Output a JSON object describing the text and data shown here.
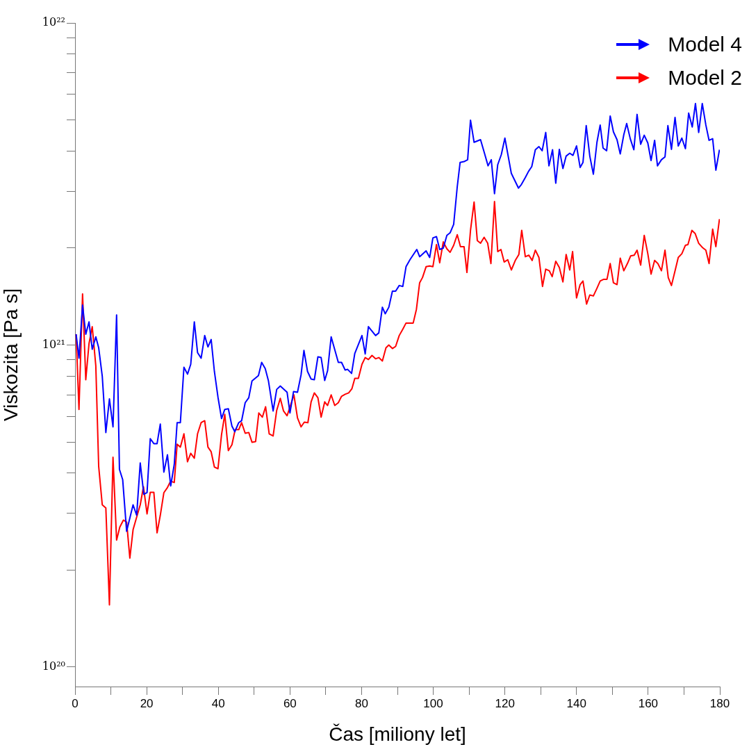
{
  "chart_data": {
    "type": "line",
    "xlabel": "Čas [miliony let]",
    "ylabel": "Viskozita [Pa s]",
    "log": "y",
    "grid": false,
    "legend": "top right",
    "marker": "none",
    "xlim": [
      0,
      180
    ],
    "xticks": [
      0,
      {
        "value": 10,
        "label": null
      },
      20,
      {
        "value": 30,
        "label": null
      },
      40,
      {
        "value": 50,
        "label": null
      },
      60,
      {
        "value": 70,
        "label": null
      },
      80,
      {
        "value": 90,
        "label": null
      },
      100,
      {
        "value": 110,
        "label": null
      },
      120,
      {
        "value": 130,
        "label": null
      },
      140,
      {
        "value": 150,
        "label": null
      },
      160,
      {
        "value": 170,
        "label": null
      },
      180
    ],
    "ylim": [
      8.7e+19,
      1e+22
    ],
    "yticks": [
      {
        "value": 1e+20,
        "label": "10²⁰"
      },
      {
        "value": 2e+20,
        "label": null
      },
      {
        "value": 3e+20,
        "label": null
      },
      {
        "value": 4e+20,
        "label": null
      },
      {
        "value": 5e+20,
        "label": null
      },
      {
        "value": 6e+20,
        "label": null
      },
      {
        "value": 7e+20,
        "label": null
      },
      {
        "value": 8e+20,
        "label": null
      },
      {
        "value": 9e+20,
        "label": null
      },
      {
        "value": 1e+21,
        "label": "10²¹"
      },
      {
        "value": 2e+21,
        "label": null
      },
      {
        "value": 3e+21,
        "label": null
      },
      {
        "value": 4e+21,
        "label": null
      },
      {
        "value": 5e+21,
        "label": null
      },
      {
        "value": 6e+21,
        "label": null
      },
      {
        "value": 7e+21,
        "label": null
      },
      {
        "value": 8e+21,
        "label": null
      },
      {
        "value": 9e+21,
        "label": null
      },
      {
        "value": 1e+22,
        "label": "10²²"
      }
    ],
    "series": [
      {
        "name": "Model 4",
        "color": "#0000ff",
        "x": [
          0.3,
          1.1,
          2.1,
          3.0,
          3.9,
          4.8,
          5.8,
          6.6,
          7.6,
          8.6,
          9.6,
          10.6,
          11.6,
          12.4,
          13.3,
          14.4,
          16.2,
          17.2,
          18.2,
          19.2,
          20.1,
          21.0,
          22.0,
          22.9,
          23.8,
          24.8,
          25.8,
          26.7,
          27.7,
          28.5,
          29.4,
          30.4,
          31.4,
          32.3,
          33.3,
          34.2,
          35.2,
          36.2,
          37.1,
          38.0,
          38.9,
          39.9,
          40.9,
          41.8,
          42.8,
          43.8,
          44.6,
          45.7,
          46.5,
          47.5,
          48.5,
          49.4,
          51.2,
          52.1,
          53.1,
          54.0,
          55.3,
          56.3,
          57.3,
          59.2,
          60.0,
          61.0,
          62.1,
          63.1,
          63.9,
          64.9,
          65.9,
          66.8,
          67.8,
          68.7,
          69.7,
          70.5,
          71.5,
          73.5,
          74.4,
          75.4,
          76.1,
          77.2,
          78.1,
          80.1,
          81.0,
          81.9,
          83.9,
          84.8,
          85.8,
          86.6,
          87.6,
          88.6,
          89.5,
          90.5,
          91.5,
          92.4,
          93.5,
          95.4,
          96.2,
          98.0,
          99.0,
          99.9,
          100.9,
          101.8,
          102.8,
          103.8,
          104.7,
          105.7,
          106.7,
          107.5,
          108.6,
          109.6,
          110.4,
          111.4,
          113.2,
          114.3,
          115.3,
          116.2,
          117.1,
          118.0,
          119.0,
          120.0,
          121.8,
          122.6,
          123.8,
          124.6,
          125.7,
          126.6,
          127.5,
          128.5,
          129.5,
          130.4,
          131.4,
          132.3,
          133.3,
          134.2,
          135.2,
          136.2,
          137.1,
          138.1,
          139.0,
          140.0,
          141.0,
          141.8,
          142.7,
          143.7,
          144.7,
          145.7,
          146.6,
          147.4,
          148.4,
          149.4,
          150.3,
          151.3,
          152.2,
          153.2,
          154.0,
          155.0,
          156.0,
          156.9,
          157.9,
          158.9,
          159.9,
          160.8,
          161.8,
          162.6,
          163.7,
          164.7,
          165.5,
          166.5,
          167.5,
          168.4,
          169.4,
          170.4,
          171.3,
          172.3,
          173.2,
          174.1,
          175.1,
          176.1,
          177.0,
          178.0,
          178.9,
          179.9
        ],
        "values": [
          1.08e+21,
          9.1e+20,
          1.33e+21,
          1.08e+21,
          1.18e+21,
          9.7e+20,
          1.06e+21,
          9.8e+20,
          8e+20,
          5.35e+20,
          6.8e+20,
          5.57e+20,
          1.24e+21,
          4.11e+20,
          3.82e+20,
          2.64e+20,
          3.19e+20,
          2.96e+20,
          4.3e+20,
          3.44e+20,
          3.48e+20,
          5.12e+20,
          4.94e+20,
          4.94e+20,
          5.68e+20,
          4.03e+20,
          4.56e+20,
          3.65e+20,
          4.26e+20,
          5.74e+20,
          5.74e+20,
          8.53e+20,
          8.12e+20,
          8.71e+20,
          1.18e+21,
          9.47e+20,
          9.1e+20,
          1.07e+21,
          9.86e+20,
          1.04e+21,
          8.28e+20,
          6.89e+20,
          5.91e+20,
          6.31e+20,
          6.34e+20,
          5.6e+20,
          5.38e+20,
          5.74e+20,
          5.82e+20,
          6.62e+20,
          6.86e+20,
          7.73e+20,
          8.04e+20,
          8.83e+20,
          8.45e+20,
          7.73e+20,
          6.24e+20,
          7.28e+20,
          7.46e+20,
          7.13e+20,
          6.15e+20,
          7.17e+20,
          7.13e+20,
          8.08e+20,
          9.62e+20,
          8.28e+20,
          7.84e+20,
          7.8e+20,
          9.19e+20,
          9.14e+20,
          7.76e+20,
          8.32e+20,
          1.06e+21,
          8.83e+20,
          8.83e+20,
          8.36e+20,
          8.4e+20,
          8.16e+20,
          9.42e+20,
          1.07e+21,
          9.38e+20,
          1.14e+21,
          1.07e+21,
          1.09e+21,
          1.31e+21,
          1.25e+21,
          1.31e+21,
          1.47e+21,
          1.47e+21,
          1.53e+21,
          1.52e+21,
          1.75e+21,
          1.84e+21,
          1.98e+21,
          1.88e+21,
          1.96e+21,
          1.87e+21,
          2.15e+21,
          2.17e+21,
          1.98e+21,
          2e+21,
          2.19e+21,
          2.23e+21,
          2.37e+21,
          3.1e+21,
          3.69e+21,
          3.71e+21,
          3.76e+21,
          4.99e+21,
          4.26e+21,
          4.34e+21,
          3.94e+21,
          3.6e+21,
          3.76e+21,
          2.95e+21,
          3.63e+21,
          3.9e+21,
          4.39e+21,
          3.41e+21,
          3.27e+21,
          3.07e+21,
          3.15e+21,
          3.31e+21,
          3.46e+21,
          3.58e+21,
          4.04e+21,
          4.13e+21,
          4.01e+21,
          4.57e+21,
          3.6e+21,
          4.04e+21,
          3.18e+21,
          4.05e+21,
          3.53e+21,
          3.86e+21,
          3.94e+21,
          3.88e+21,
          4.15e+21,
          3.56e+21,
          3.69e+21,
          4.8e+21,
          3.86e+21,
          3.39e+21,
          4.26e+21,
          4.82e+21,
          4.09e+21,
          4.01e+21,
          5.14e+21,
          4.59e+21,
          4.34e+21,
          3.92e+21,
          4.5e+21,
          4.87e+21,
          4.37e+21,
          4.04e+21,
          5.2e+21,
          4.2e+21,
          4.48e+21,
          4.24e+21,
          3.74e+21,
          4.32e+21,
          3.6e+21,
          3.76e+21,
          3.84e+21,
          4.8e+21,
          4.05e+21,
          5.09e+21,
          4.15e+21,
          4.39e+21,
          4.07e+21,
          5.25e+21,
          4.75e+21,
          5.62e+21,
          4.57e+21,
          5.62e+21,
          4.82e+21,
          4.32e+21,
          4.37e+21,
          3.49e+21,
          4.04e+21
        ]
      },
      {
        "name": "Model 2",
        "color": "#ff0000",
        "x": [
          0.3,
          1.1,
          2.1,
          3.0,
          3.9,
          4.8,
          5.8,
          6.6,
          7.6,
          8.6,
          9.6,
          10.6,
          11.6,
          12.5,
          13.5,
          14.4,
          15.3,
          16.2,
          17.2,
          18.2,
          19.1,
          20.1,
          21.0,
          22.0,
          22.9,
          23.8,
          24.8,
          25.8,
          26.7,
          27.7,
          28.5,
          29.4,
          30.4,
          31.4,
          32.3,
          33.3,
          34.2,
          35.2,
          36.2,
          37.1,
          38.0,
          38.9,
          39.9,
          40.9,
          41.8,
          42.8,
          43.8,
          44.7,
          45.7,
          46.5,
          47.5,
          48.5,
          49.4,
          50.4,
          51.3,
          52.3,
          53.2,
          54.2,
          55.3,
          56.3,
          57.3,
          58.2,
          59.2,
          61.1,
          62.1,
          63.1,
          64.0,
          65.0,
          65.9,
          66.8,
          67.8,
          68.7,
          69.7,
          70.5,
          71.5,
          72.5,
          73.5,
          74.4,
          75.4,
          76.4,
          77.3,
          78.1,
          79.1,
          80.1,
          81.0,
          81.9,
          82.9,
          83.9,
          84.8,
          85.8,
          86.8,
          87.6,
          88.6,
          89.5,
          90.5,
          91.5,
          92.4,
          94.4,
          95.3,
          96.2,
          97.0,
          98.0,
          99.0,
          99.9,
          100.9,
          101.8,
          102.8,
          103.8,
          104.7,
          105.7,
          106.7,
          107.6,
          108.6,
          109.4,
          110.4,
          111.4,
          112.3,
          113.2,
          114.2,
          115.2,
          116.1,
          117.1,
          118.0,
          118.9,
          119.8,
          120.8,
          121.8,
          122.9,
          123.9,
          124.7,
          125.7,
          126.7,
          127.6,
          128.5,
          129.5,
          130.5,
          131.4,
          132.4,
          133.2,
          134.2,
          135.2,
          136.2,
          137.1,
          138.1,
          138.9,
          140.0,
          141.0,
          141.8,
          142.8,
          143.7,
          144.7,
          145.7,
          146.6,
          147.6,
          148.5,
          149.4,
          150.3,
          151.3,
          152.2,
          153.2,
          154.2,
          155.1,
          156.1,
          156.9,
          157.9,
          158.9,
          159.9,
          160.8,
          161.8,
          162.7,
          163.7,
          164.7,
          165.6,
          166.5,
          167.5,
          168.4,
          169.4,
          170.4,
          171.1,
          172.2,
          173.1,
          174.1,
          175.1,
          176.1,
          177.0,
          178.0,
          178.9,
          179.9
        ],
        "values": [
          1.08e+21,
          6.31e+20,
          1.44e+21,
          7.8e+20,
          1.01e+21,
          1.14e+21,
          8.61e+20,
          4.2e+20,
          3.19e+20,
          3.12e+20,
          1.56e+20,
          4.48e+20,
          2.48e+20,
          2.72e+20,
          2.86e+20,
          2.82e+20,
          2.18e+20,
          2.67e+20,
          2.92e+20,
          3.19e+20,
          3.63e+20,
          2.99e+20,
          3.49e+20,
          3.49e+20,
          2.61e+20,
          2.96e+20,
          3.48e+20,
          3.61e+20,
          3.78e+20,
          3.74e+20,
          4.92e+20,
          4.82e+20,
          5.3e+20,
          4.34e+20,
          4.61e+20,
          4.45e+20,
          5.3e+20,
          5.74e+20,
          5.82e+20,
          4.82e+20,
          4.66e+20,
          4.18e+20,
          4.13e+20,
          5.27e+20,
          6.09e+20,
          4.7e+20,
          4.9e+20,
          5.46e+20,
          5.46e+20,
          5.74e+20,
          5.32e+20,
          5.35e+20,
          4.99e+20,
          5.01e+20,
          6.15e+20,
          5.97e+20,
          6.43e+20,
          5.3e+20,
          5.22e+20,
          6.27e+20,
          6.83e+20,
          6.24e+20,
          6.03e+20,
          7e+20,
          5.94e+20,
          5.57e+20,
          5.76e+20,
          5.74e+20,
          6.66e+20,
          7.1e+20,
          6.86e+20,
          5.97e+20,
          6.66e+20,
          6.49e+20,
          7e+20,
          6.49e+20,
          6.62e+20,
          6.93e+20,
          7.03e+20,
          7.1e+20,
          7.32e+20,
          7.88e+20,
          7.88e+20,
          8.71e+20,
          9.14e+20,
          9.01e+20,
          9.28e+20,
          9.06e+20,
          9.14e+20,
          8.92e+20,
          9.8e+20,
          1e+21,
          9.75e+20,
          9.9e+20,
          1.07e+21,
          1.12e+21,
          1.17e+21,
          1.17e+21,
          1.29e+21,
          1.56e+21,
          1.62e+21,
          1.75e+21,
          1.76e+21,
          1.75e+21,
          2.05e+21,
          1.8e+21,
          2.09e+21,
          1.99e+21,
          1.94e+21,
          2.04e+21,
          2.2e+21,
          2.02e+21,
          2.02e+21,
          1.68e+21,
          2.27e+21,
          2.78e+21,
          2.11e+21,
          2.07e+21,
          2.16e+21,
          2.07e+21,
          1.79e+21,
          2.79e+21,
          1.95e+21,
          1.98e+21,
          1.81e+21,
          1.84e+21,
          1.71e+21,
          1.83e+21,
          1.91e+21,
          2.27e+21,
          1.88e+21,
          1.9e+21,
          1.83e+21,
          1.97e+21,
          1.87e+21,
          1.52e+21,
          1.72e+21,
          1.7e+21,
          1.63e+21,
          1.82e+21,
          1.74e+21,
          1.57e+21,
          1.91e+21,
          1.71e+21,
          1.95e+21,
          1.4e+21,
          1.54e+21,
          1.58e+21,
          1.34e+21,
          1.43e+21,
          1.42e+21,
          1.5e+21,
          1.58e+21,
          1.6e+21,
          1.6e+21,
          1.79e+21,
          1.56e+21,
          1.54e+21,
          1.86e+21,
          1.7e+21,
          1.79e+21,
          1.89e+21,
          1.9e+21,
          1.97e+21,
          1.77e+21,
          2.19e+21,
          1.92e+21,
          1.66e+21,
          1.83e+21,
          1.79e+21,
          1.7e+21,
          1.97e+21,
          1.62e+21,
          1.53e+21,
          1.7e+21,
          1.87e+21,
          1.92e+21,
          2.04e+21,
          2.05e+21,
          2.27e+21,
          2.22e+21,
          2.07e+21,
          2.01e+21,
          1.97e+21,
          1.79e+21,
          2.29e+21,
          2.02e+21,
          2.46e+21
        ]
      }
    ]
  }
}
